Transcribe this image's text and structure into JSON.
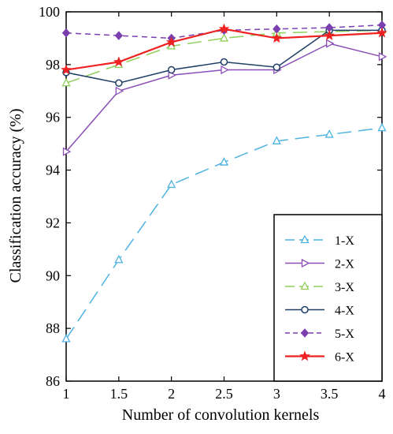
{
  "chart_data": {
    "type": "line",
    "title": "",
    "xlabel": "Number of convolution kernels",
    "ylabel": "Classification accuracy (%)",
    "xlim": [
      1,
      4
    ],
    "ylim": [
      86,
      100
    ],
    "x_ticks": [
      "1",
      "1.5",
      "2",
      "2.5",
      "3",
      "3.5",
      "4"
    ],
    "y_ticks": [
      "86",
      "88",
      "90",
      "92",
      "94",
      "96",
      "98",
      "100"
    ],
    "grid": false,
    "legend_position": "bottom-right",
    "x": [
      1,
      1.5,
      2,
      2.5,
      3,
      3.5,
      4
    ],
    "series": [
      {
        "name": "1-X",
        "color": "#4fb3e0",
        "marker": "triangle-up",
        "dash": "long",
        "values": [
          87.6,
          90.6,
          93.45,
          94.3,
          95.1,
          95.35,
          95.6
        ]
      },
      {
        "name": "2-X",
        "color": "#8b4fb8",
        "marker": "triangle-right",
        "dash": "solid",
        "values": [
          94.7,
          97.0,
          97.6,
          97.8,
          97.8,
          98.8,
          98.3
        ]
      },
      {
        "name": "3-X",
        "color": "#8fcf5a",
        "marker": "triangle-up",
        "dash": "long",
        "values": [
          97.3,
          98.0,
          98.7,
          99.0,
          99.2,
          99.25,
          99.3
        ]
      },
      {
        "name": "4-X",
        "color": "#1f3f66",
        "marker": "circle",
        "dash": "solid",
        "values": [
          97.7,
          97.3,
          97.8,
          98.1,
          97.9,
          99.3,
          99.3
        ]
      },
      {
        "name": "5-X",
        "color": "#7b3fb0",
        "marker": "diamond",
        "dash": "short",
        "values": [
          99.2,
          99.1,
          99.0,
          99.3,
          99.35,
          99.4,
          99.5
        ]
      },
      {
        "name": "6-X",
        "color": "#ee2222",
        "marker": "star",
        "dash": "solid",
        "values": [
          97.8,
          98.1,
          98.85,
          99.35,
          99.0,
          99.1,
          99.2
        ]
      }
    ]
  }
}
